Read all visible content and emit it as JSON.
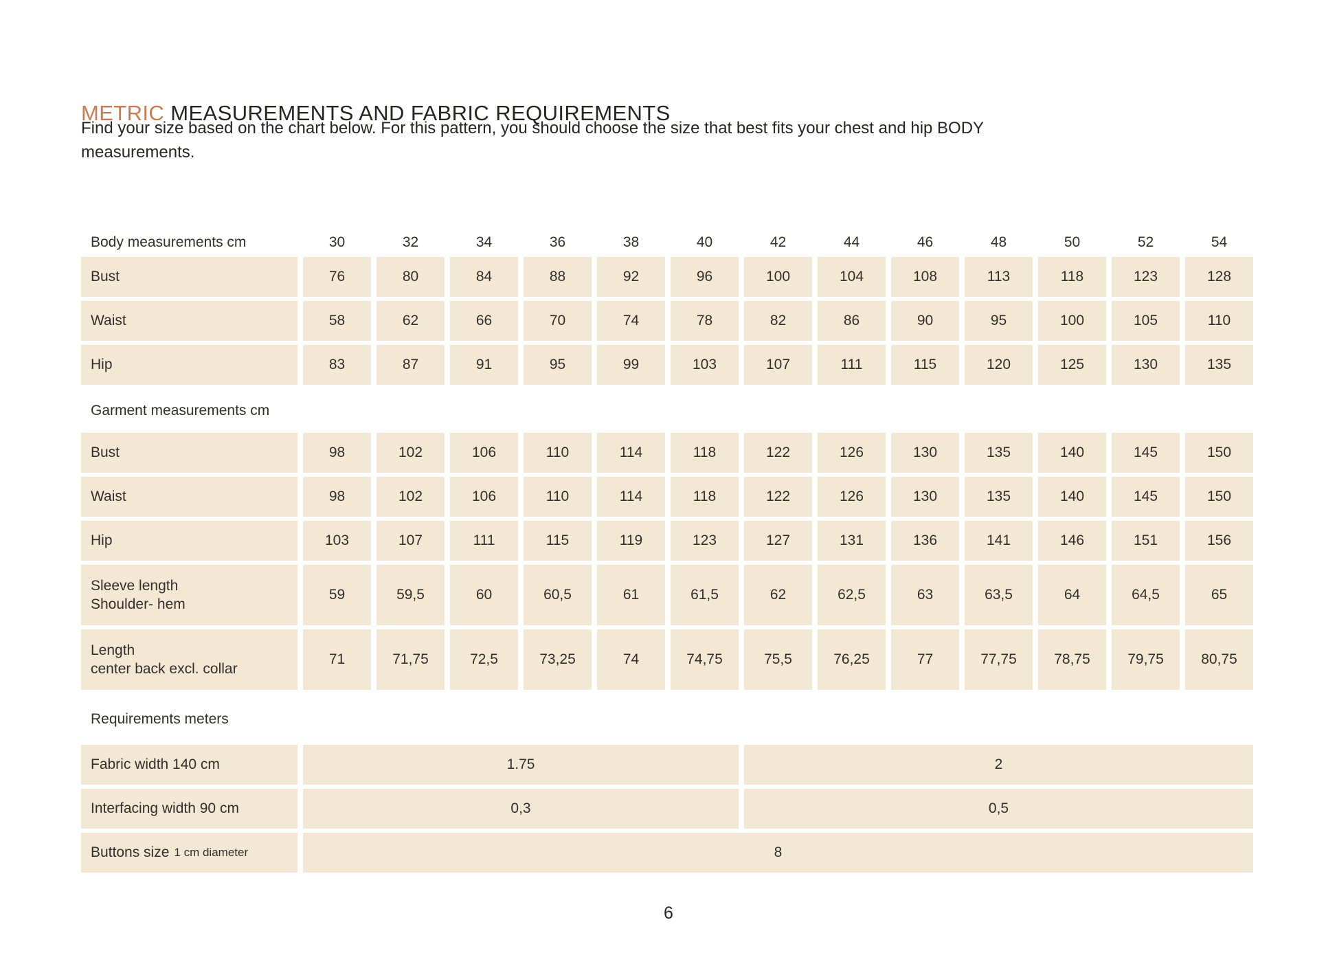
{
  "page": {
    "title_highlight": "METRIC",
    "title_rest": " MEASUREMENTS AND FABRIC REQUIREMENTS",
    "intro_line1": "Find your size based on the chart below. For this pattern, you should choose the size that best fits your chest and hip BODY",
    "intro_line2": "measurements.",
    "page_number": "6"
  },
  "colors": {
    "accent": "#c97c52",
    "cell_bg": "#f2e8d4",
    "text": "#2b2a28"
  },
  "table": {
    "header": {
      "label": "Body measurements cm",
      "sizes": [
        "30",
        "32",
        "34",
        "36",
        "38",
        "40",
        "42",
        "44",
        "46",
        "48",
        "50",
        "52",
        "54"
      ]
    },
    "body_section_rows": [
      {
        "label": "Bust",
        "values": [
          "76",
          "80",
          "84",
          "88",
          "92",
          "96",
          "100",
          "104",
          "108",
          "113",
          "118",
          "123",
          "128"
        ]
      },
      {
        "label": "Waist",
        "values": [
          "58",
          "62",
          "66",
          "70",
          "74",
          "78",
          "82",
          "86",
          "90",
          "95",
          "100",
          "105",
          "110"
        ]
      },
      {
        "label": "Hip",
        "values": [
          "83",
          "87",
          "91",
          "95",
          "99",
          "103",
          "107",
          "111",
          "115",
          "120",
          "125",
          "130",
          "135"
        ]
      }
    ],
    "garment_section_header": "Garment measurements cm",
    "garment_section_rows": [
      {
        "label": "Bust",
        "values": [
          "98",
          "102",
          "106",
          "110",
          "114",
          "118",
          "122",
          "126",
          "130",
          "135",
          "140",
          "145",
          "150"
        ]
      },
      {
        "label": "Waist",
        "values": [
          "98",
          "102",
          "106",
          "110",
          "114",
          "118",
          "122",
          "126",
          "130",
          "135",
          "140",
          "145",
          "150"
        ]
      },
      {
        "label": "Hip",
        "values": [
          "103",
          "107",
          "111",
          "115",
          "119",
          "123",
          "127",
          "131",
          "136",
          "141",
          "146",
          "151",
          "156"
        ]
      },
      {
        "label": "Sleeve length",
        "label2": "Shoulder- hem",
        "values": [
          "59",
          "59,5",
          "60",
          "60,5",
          "61",
          "61,5",
          "62",
          "62,5",
          "63",
          "63,5",
          "64",
          "64,5",
          "65"
        ]
      },
      {
        "label": "Length",
        "label2": "center back excl. collar",
        "values": [
          "71",
          "71,75",
          "72,5",
          "73,25",
          "74",
          "74,75",
          "75,5",
          "76,25",
          "77",
          "77,75",
          "78,75",
          "79,75",
          "80,75"
        ]
      }
    ],
    "requirements_section_header": "Requirements meters",
    "requirements_rows": [
      {
        "label": "Fabric width 140 cm",
        "spans": [
          {
            "text": "1.75",
            "cols": 6
          },
          {
            "text": "2",
            "cols": 7
          }
        ]
      },
      {
        "label": "Interfacing width 90 cm",
        "spans": [
          {
            "text": "0,3",
            "cols": 6
          },
          {
            "text": "0,5",
            "cols": 7
          }
        ]
      },
      {
        "label": "Buttons size",
        "label_note": "1 cm diameter",
        "spans": [
          {
            "text": "8",
            "cols": 13
          }
        ]
      }
    ]
  }
}
